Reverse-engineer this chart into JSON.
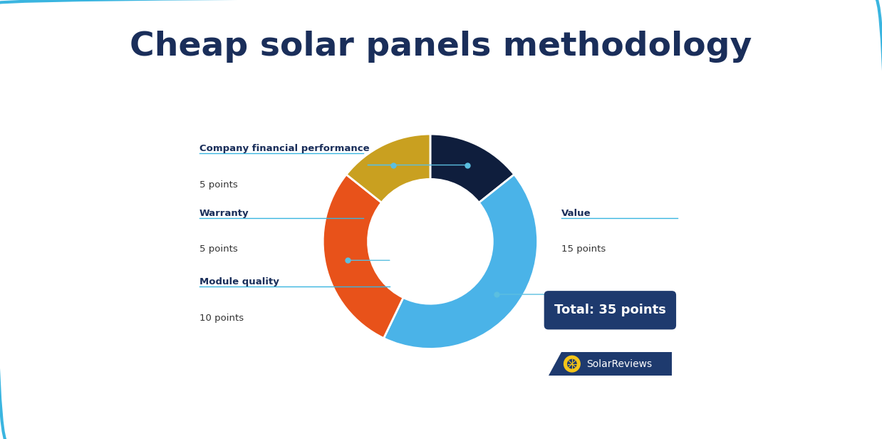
{
  "title": "Cheap solar panels methodology",
  "title_fontsize": 34,
  "title_fontweight": "bold",
  "title_color": "#1a2e5a",
  "background_color": "#ffffff",
  "border_color": "#3ab5e0",
  "slices": [
    {
      "label": "Value",
      "points": 15,
      "color": "#4ab3e8",
      "pct": 42.857
    },
    {
      "label": "Module quality",
      "points": 10,
      "color": "#e8521a",
      "pct": 28.571
    },
    {
      "label": "Warranty",
      "points": 5,
      "color": "#c9a020",
      "pct": 14.286
    },
    {
      "label": "Company financial performance",
      "points": 5,
      "color": "#0f1e3d",
      "pct": 14.286
    }
  ],
  "annotation_line_color": "#5bbfe0",
  "label_color": "#1a2e5a",
  "sub_color": "#333333",
  "hr_color": "#3ab5e0",
  "total_box_text": "Total: 35 points",
  "total_box_color": "#1e3a6e",
  "total_box_text_color": "#ffffff",
  "solarreviews_text": "SolarReviews",
  "sr_bg_color": "#1e3a6e",
  "sr_text_color": "#ffffff",
  "sr_sun_color": "#f5c518"
}
